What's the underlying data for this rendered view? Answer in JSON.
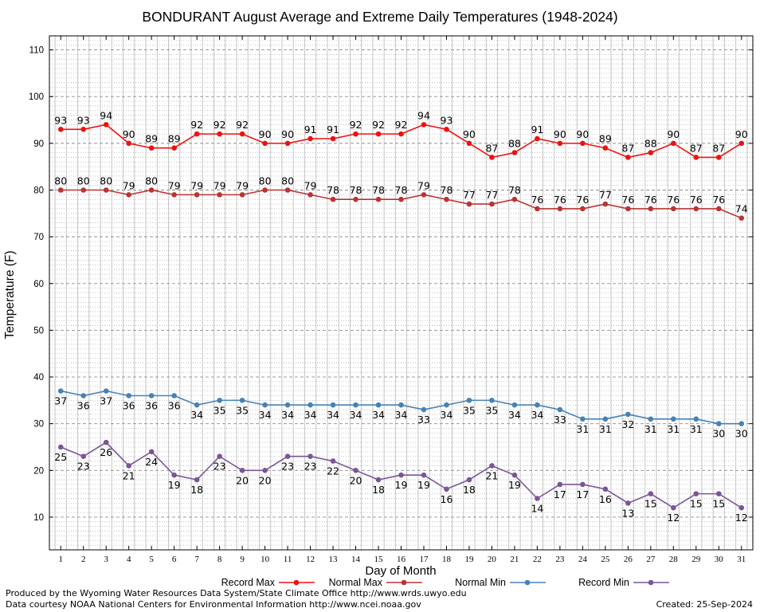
{
  "chart_data": {
    "type": "line",
    "title": "BONDURANT August Average and Extreme Daily Temperatures (1948-2024)",
    "xlabel": "Day of Month",
    "ylabel": "Temperature (F)",
    "x": [
      1,
      2,
      3,
      4,
      5,
      6,
      7,
      8,
      9,
      10,
      11,
      12,
      13,
      14,
      15,
      16,
      17,
      18,
      19,
      20,
      21,
      22,
      23,
      24,
      25,
      26,
      27,
      28,
      29,
      30,
      31
    ],
    "xlim": [
      0.5,
      31.5
    ],
    "ylim": [
      3,
      113
    ],
    "yticks": [
      10,
      20,
      30,
      40,
      50,
      60,
      70,
      80,
      90,
      100,
      110
    ],
    "grid": true,
    "legend_position": "bottom",
    "series": [
      {
        "name": "Record Max",
        "color": "#ee1111",
        "marker": "circle",
        "values": [
          93,
          93,
          94,
          90,
          89,
          89,
          92,
          92,
          92,
          90,
          90,
          91,
          91,
          92,
          92,
          92,
          94,
          93,
          90,
          87,
          88,
          91,
          90,
          90,
          89,
          87,
          88,
          90,
          87,
          87,
          90
        ],
        "label_position": "above"
      },
      {
        "name": "Normal Max",
        "color": "#bb3333",
        "marker": "circle",
        "values": [
          80,
          80,
          80,
          79,
          80,
          79,
          79,
          79,
          79,
          80,
          80,
          79,
          78,
          78,
          78,
          78,
          79,
          78,
          77,
          77,
          78,
          76,
          76,
          76,
          77,
          76,
          76,
          76,
          76,
          76,
          74
        ],
        "label_position": "above"
      },
      {
        "name": "Normal Min",
        "color": "#4682b4",
        "marker": "circle",
        "values": [
          37,
          36,
          37,
          36,
          36,
          36,
          34,
          35,
          35,
          34,
          34,
          34,
          34,
          34,
          34,
          34,
          33,
          34,
          35,
          35,
          34,
          34,
          33,
          31,
          31,
          32,
          31,
          31,
          31,
          30,
          30
        ],
        "label_position": "below"
      },
      {
        "name": "Record Min",
        "color": "#7b5597",
        "marker": "circle",
        "values": [
          25,
          23,
          26,
          21,
          24,
          19,
          18,
          23,
          20,
          20,
          23,
          23,
          22,
          20,
          18,
          19,
          19,
          16,
          18,
          21,
          19,
          14,
          17,
          17,
          16,
          13,
          15,
          12,
          15,
          15,
          12
        ],
        "label_position": "below"
      }
    ]
  },
  "credits": {
    "produced_by": "Produced by the Wyoming Water Resources Data System/State Climate Office http://www.wrds.uwyo.edu",
    "data_courtesy": "Data courtesy NOAA National Centers for Environmental Information http://www.ncei.noaa.gov",
    "created": "Created:  25-Sep-2024"
  }
}
